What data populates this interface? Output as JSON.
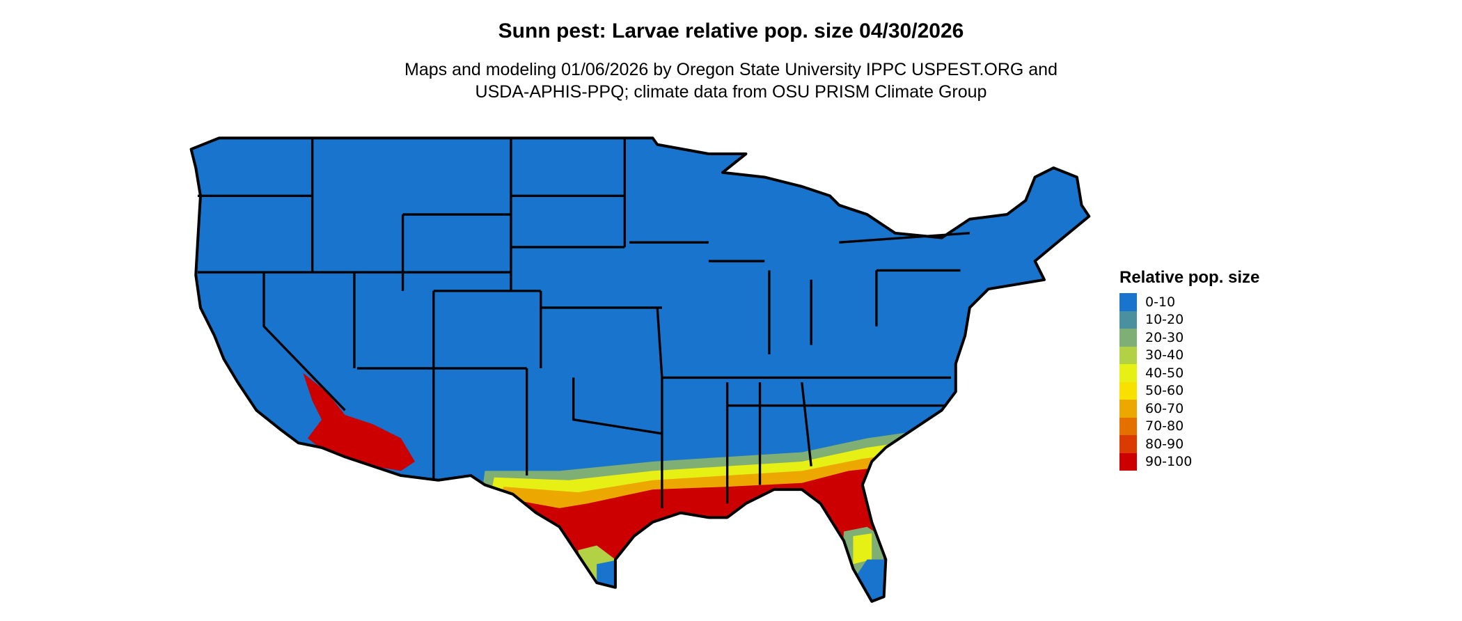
{
  "title": "Sunn pest: Larvae relative pop. size 04/30/2026",
  "subtitle_line1": "Maps and modeling 01/06/2026 by Oregon State University IPPC USPEST.ORG and",
  "subtitle_line2": "USDA-APHIS-PPQ; climate data from OSU PRISM Climate Group",
  "legend": {
    "title": "Relative pop. size",
    "items": [
      {
        "label": "0-10",
        "color": "#1874CD"
      },
      {
        "label": "10-20",
        "color": "#4A909F"
      },
      {
        "label": "20-30",
        "color": "#7FAF74"
      },
      {
        "label": "30-40",
        "color": "#B2D145"
      },
      {
        "label": "40-50",
        "color": "#E6F015"
      },
      {
        "label": "50-60",
        "color": "#F8E000"
      },
      {
        "label": "60-70",
        "color": "#EDA800"
      },
      {
        "label": "70-80",
        "color": "#E47000"
      },
      {
        "label": "80-90",
        "color": "#DB3A00"
      },
      {
        "label": "90-100",
        "color": "#CC0000"
      }
    ]
  },
  "map": {
    "region": "Contiguous United States",
    "high_risk_areas": [
      "southern Arizona",
      "southeastern California",
      "Gulf Coast",
      "Florida"
    ]
  }
}
